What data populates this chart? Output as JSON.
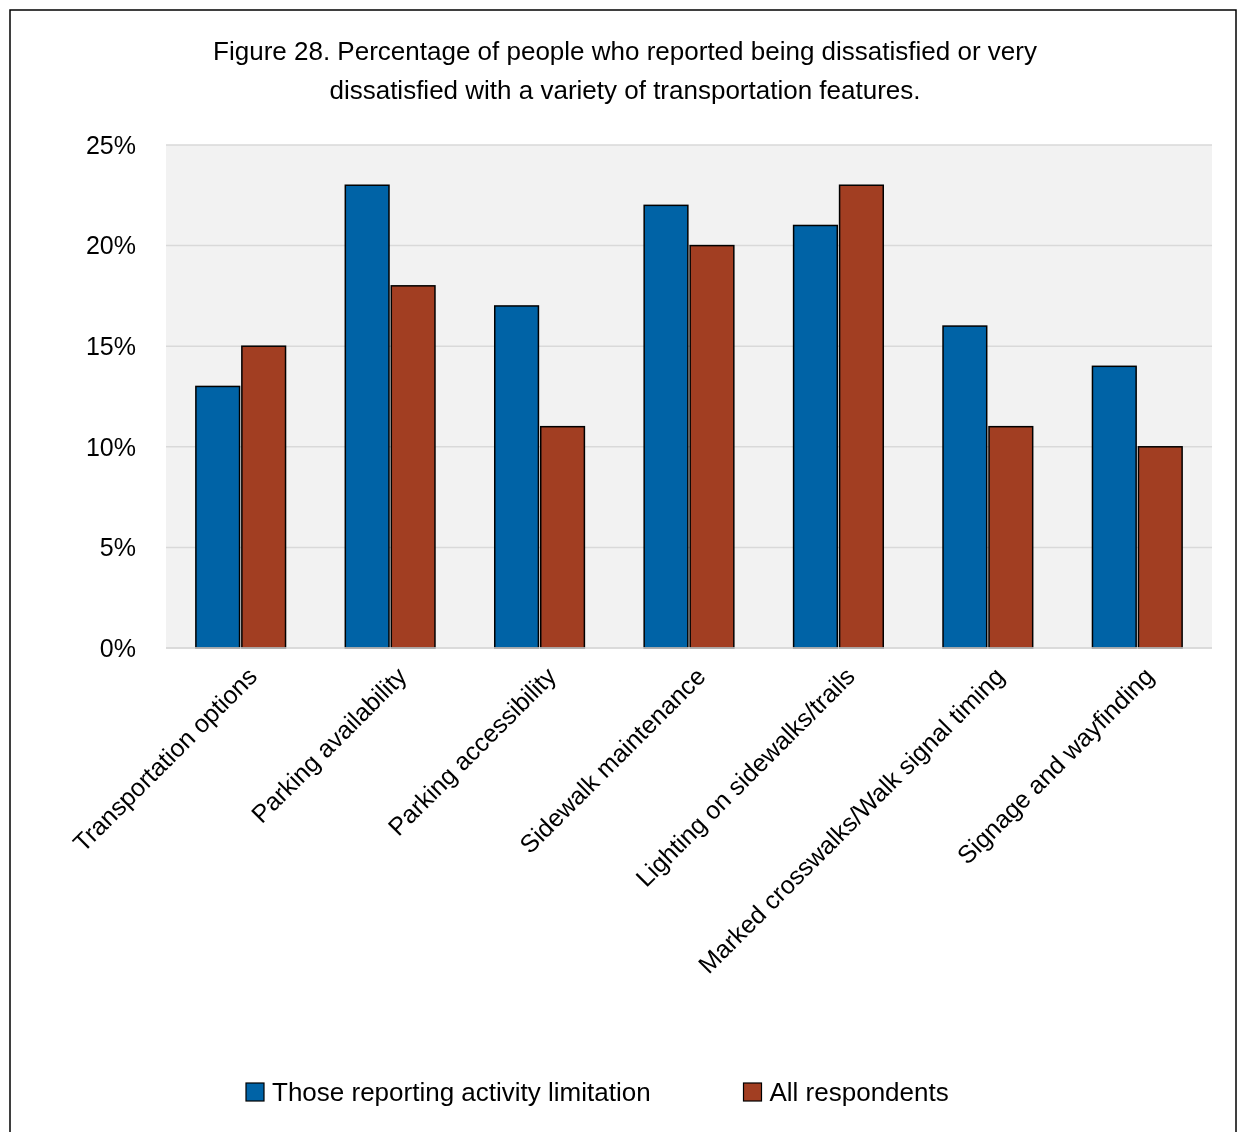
{
  "chart_data": {
    "type": "bar",
    "title": "Figure 28. Percentage of people who reported being dissatisfied or very dissatisfied with a variety of transportation features.",
    "categories": [
      "Transportation options",
      "Parking availability",
      "Parking accessibility",
      "Sidewalk maintenance",
      "Lighting on sidewalks/trails",
      "Marked crosswalks/Walk signal timing",
      "Signage and wayfinding"
    ],
    "series": [
      {
        "name": "Those reporting activity limitation",
        "color": "#0063a6",
        "values": [
          13,
          23,
          17,
          22,
          21,
          16,
          14
        ]
      },
      {
        "name": "All respondents",
        "color": "#a23e22",
        "values": [
          15,
          18,
          11,
          20,
          23,
          11,
          10
        ]
      }
    ],
    "ylim": [
      0,
      25
    ],
    "yticks": [
      {
        "value": 0,
        "label": "0%"
      },
      {
        "value": 5,
        "label": "5%"
      },
      {
        "value": 10,
        "label": "10%"
      },
      {
        "value": 15,
        "label": "15%"
      },
      {
        "value": 20,
        "label": "20%"
      },
      {
        "value": 25,
        "label": "25%"
      }
    ],
    "grid": "y",
    "legend": "bottom"
  }
}
